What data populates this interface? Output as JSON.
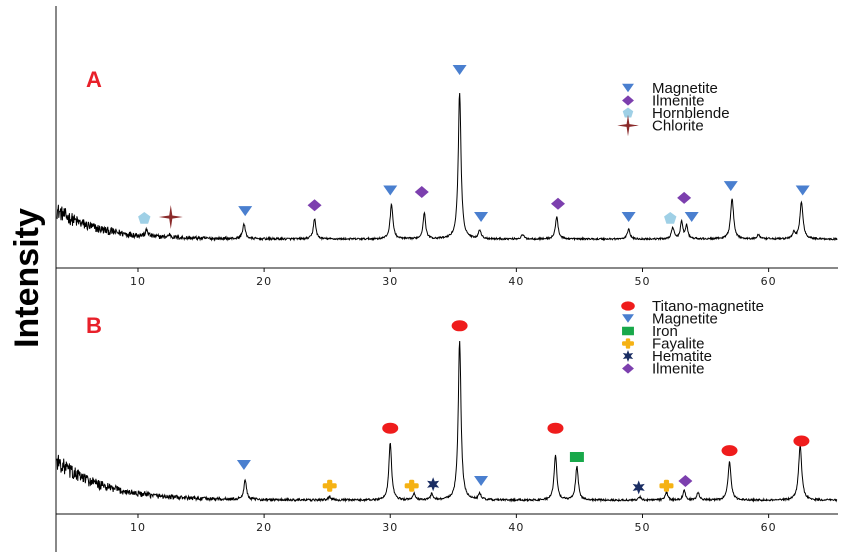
{
  "figure": {
    "ylabel": "Intensity"
  },
  "chart_data": [
    {
      "type": "line",
      "panel_label": "A",
      "x_ticks": [
        10,
        20,
        30,
        40,
        50,
        60
      ],
      "xlim": [
        3.5,
        65.5
      ],
      "legend_position": "top-right",
      "legend": [
        {
          "label": "Magnetite",
          "marker": "triangle-down",
          "color": "#4a7fcf"
        },
        {
          "label": "Ilmenite",
          "marker": "diamond",
          "color": "#7c3fae"
        },
        {
          "label": "Hornblende",
          "marker": "pentagon",
          "color": "#9fd0e6"
        },
        {
          "label": "Chlorite",
          "marker": "star4",
          "color": "#8b2b2b"
        }
      ],
      "baseline": {
        "start": 0.22,
        "decay": 3.2,
        "floor": 0.02
      },
      "peaks": [
        {
          "x": 10.7,
          "h": 0.04,
          "w": 0.12
        },
        {
          "x": 12.5,
          "h": 0.02,
          "w": 0.12
        },
        {
          "x": 18.4,
          "h": 0.1,
          "w": 0.13
        },
        {
          "x": 24.0,
          "h": 0.14,
          "w": 0.12
        },
        {
          "x": 30.1,
          "h": 0.24,
          "w": 0.13
        },
        {
          "x": 32.7,
          "h": 0.18,
          "w": 0.12
        },
        {
          "x": 35.5,
          "h": 1.0,
          "w": 0.13
        },
        {
          "x": 37.1,
          "h": 0.06,
          "w": 0.12
        },
        {
          "x": 40.5,
          "h": 0.03,
          "w": 0.12
        },
        {
          "x": 43.2,
          "h": 0.15,
          "w": 0.13
        },
        {
          "x": 48.9,
          "h": 0.07,
          "w": 0.12
        },
        {
          "x": 52.4,
          "h": 0.08,
          "w": 0.12
        },
        {
          "x": 53.1,
          "h": 0.12,
          "w": 0.11
        },
        {
          "x": 53.5,
          "h": 0.09,
          "w": 0.11
        },
        {
          "x": 57.1,
          "h": 0.28,
          "w": 0.14
        },
        {
          "x": 59.2,
          "h": 0.03,
          "w": 0.12
        },
        {
          "x": 62.0,
          "h": 0.04,
          "w": 0.12
        },
        {
          "x": 62.6,
          "h": 0.25,
          "w": 0.15
        }
      ],
      "markers": [
        {
          "x": 10.5,
          "y": 0.16,
          "phase": "Hornblende"
        },
        {
          "x": 12.6,
          "y": 0.17,
          "phase": "Chlorite"
        },
        {
          "x": 18.5,
          "y": 0.21,
          "phase": "Magnetite"
        },
        {
          "x": 24.0,
          "y": 0.25,
          "phase": "Ilmenite"
        },
        {
          "x": 30.0,
          "y": 0.35,
          "phase": "Magnetite"
        },
        {
          "x": 32.5,
          "y": 0.34,
          "phase": "Ilmenite"
        },
        {
          "x": 35.5,
          "y": 1.17,
          "phase": "Magnetite"
        },
        {
          "x": 37.2,
          "y": 0.17,
          "phase": "Magnetite"
        },
        {
          "x": 43.3,
          "y": 0.26,
          "phase": "Ilmenite"
        },
        {
          "x": 48.9,
          "y": 0.17,
          "phase": "Magnetite"
        },
        {
          "x": 52.2,
          "y": 0.16,
          "phase": "Hornblende"
        },
        {
          "x": 53.9,
          "y": 0.17,
          "phase": "Magnetite"
        },
        {
          "x": 53.3,
          "y": 0.3,
          "phase": "Ilmenite"
        },
        {
          "x": 57.0,
          "y": 0.38,
          "phase": "Magnetite"
        },
        {
          "x": 62.7,
          "y": 0.35,
          "phase": "Magnetite"
        }
      ]
    },
    {
      "type": "line",
      "panel_label": "B",
      "x_ticks": [
        10,
        20,
        30,
        40,
        50,
        60
      ],
      "xlim": [
        3.5,
        65.5
      ],
      "legend_position": "top-right",
      "legend": [
        {
          "label": "Titano-magnetite",
          "marker": "ellipse",
          "color": "#ef1c1c"
        },
        {
          "label": "Magnetite",
          "marker": "triangle-down",
          "color": "#4a7fcf"
        },
        {
          "label": "Iron",
          "marker": "square",
          "color": "#18a84a"
        },
        {
          "label": "Fayalite",
          "marker": "plus",
          "color": "#f5b214"
        },
        {
          "label": "Hematite",
          "marker": "star6",
          "color": "#1a2d63"
        },
        {
          "label": "Ilmenite",
          "marker": "diamond",
          "color": "#7c3fae"
        }
      ],
      "baseline": {
        "start": 0.28,
        "decay": 3.6,
        "floor": 0.03
      },
      "peaks": [
        {
          "x": 18.5,
          "h": 0.12,
          "w": 0.13
        },
        {
          "x": 25.2,
          "h": 0.02,
          "w": 0.15
        },
        {
          "x": 30.0,
          "h": 0.36,
          "w": 0.13
        },
        {
          "x": 31.9,
          "h": 0.04,
          "w": 0.12
        },
        {
          "x": 33.3,
          "h": 0.04,
          "w": 0.12
        },
        {
          "x": 35.5,
          "h": 1.0,
          "w": 0.13
        },
        {
          "x": 37.1,
          "h": 0.04,
          "w": 0.12
        },
        {
          "x": 43.1,
          "h": 0.28,
          "w": 0.13
        },
        {
          "x": 44.8,
          "h": 0.21,
          "w": 0.13
        },
        {
          "x": 49.8,
          "h": 0.02,
          "w": 0.12
        },
        {
          "x": 51.9,
          "h": 0.05,
          "w": 0.12
        },
        {
          "x": 53.3,
          "h": 0.06,
          "w": 0.12
        },
        {
          "x": 54.4,
          "h": 0.05,
          "w": 0.12
        },
        {
          "x": 56.9,
          "h": 0.24,
          "w": 0.14
        },
        {
          "x": 62.5,
          "h": 0.34,
          "w": 0.15
        }
      ],
      "markers": [
        {
          "x": 18.4,
          "y": 0.25,
          "phase": "Magnetite"
        },
        {
          "x": 25.2,
          "y": 0.12,
          "phase": "Fayalite"
        },
        {
          "x": 30.0,
          "y": 0.48,
          "phase": "Titano-magnetite"
        },
        {
          "x": 31.7,
          "y": 0.12,
          "phase": "Fayalite"
        },
        {
          "x": 33.4,
          "y": 0.13,
          "phase": "Hematite"
        },
        {
          "x": 35.5,
          "y": 1.12,
          "phase": "Titano-magnetite"
        },
        {
          "x": 37.2,
          "y": 0.15,
          "phase": "Magnetite"
        },
        {
          "x": 43.1,
          "y": 0.48,
          "phase": "Titano-magnetite"
        },
        {
          "x": 44.8,
          "y": 0.3,
          "phase": "Iron"
        },
        {
          "x": 49.7,
          "y": 0.11,
          "phase": "Hematite"
        },
        {
          "x": 51.9,
          "y": 0.12,
          "phase": "Fayalite"
        },
        {
          "x": 53.4,
          "y": 0.15,
          "phase": "Ilmenite"
        },
        {
          "x": 56.9,
          "y": 0.34,
          "phase": "Titano-magnetite"
        },
        {
          "x": 62.6,
          "y": 0.4,
          "phase": "Titano-magnetite"
        }
      ]
    }
  ]
}
